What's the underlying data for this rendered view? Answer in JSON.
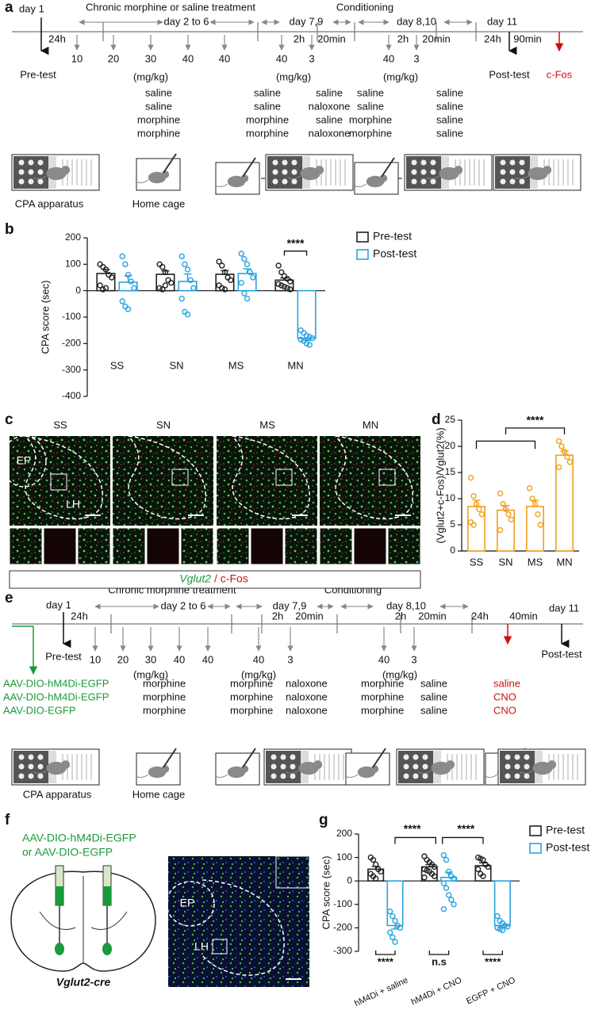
{
  "panel_a": {
    "label": "a",
    "treatment": "Chronic morphine or saline treatment",
    "conditioning": "Conditioning",
    "days": [
      "day 1",
      "day 2 to 6",
      "day 7,9",
      "day 8,10",
      "day 11"
    ],
    "intervals": [
      "24h",
      "2h",
      "20min",
      "2h",
      "20min",
      "24h",
      "90min"
    ],
    "doses": [
      10,
      20,
      30,
      40,
      40,
      40,
      3,
      40,
      3
    ],
    "unit": "(mg/kg)",
    "tests": [
      "Pre-test",
      "Post-test"
    ],
    "marker": "c-Fos",
    "groups": [
      [
        "saline",
        "saline",
        "morphine",
        "morphine"
      ],
      [
        "saline",
        "saline",
        "morphine",
        "morphine"
      ],
      [
        "saline",
        "naloxone",
        "saline",
        "naloxone"
      ],
      [
        "saline",
        "saline",
        "morphine",
        "morphine"
      ],
      [
        "saline",
        "saline",
        "saline",
        "saline"
      ]
    ],
    "apparatus": [
      "CPA apparatus",
      "Home cage"
    ]
  },
  "panel_c": {
    "label": "c",
    "groups": [
      "SS",
      "SN",
      "MS",
      "MN"
    ],
    "regions": [
      "EP",
      "LH"
    ],
    "legend": [
      "Vglut2",
      "/ c-Fos"
    ]
  },
  "panel_e": {
    "label": "e",
    "treatment": "Chronic morphine treatment",
    "conditioning": "Conditioning",
    "days": [
      "day 1",
      "day 2 to 6",
      "day 7,9",
      "day 8,10",
      "day 11"
    ],
    "intervals": [
      "24h",
      "2h",
      "20min",
      "2h",
      "20min",
      "24h",
      "40min"
    ],
    "doses": [
      10,
      20,
      30,
      40,
      40,
      40,
      3,
      40,
      3
    ],
    "unit": "(mg/kg)",
    "tests": [
      "Pre-test",
      "Post-test"
    ],
    "viruses": [
      "AAV-DIO-hM4Di-EGFP",
      "AAV-DIO-hM4Di-EGFP",
      "AAV-DIO-EGFP"
    ],
    "groups": [
      [
        "morphine",
        "morphine",
        "morphine"
      ],
      [
        "morphine",
        "morphine",
        "morphine"
      ],
      [
        "naloxone",
        "naloxone",
        "naloxone"
      ],
      [
        "morphine",
        "morphine",
        "morphine"
      ],
      [
        "saline",
        "saline",
        "saline"
      ]
    ],
    "drugs": [
      "saline",
      "CNO",
      "CNO"
    ],
    "apparatus": [
      "CPA apparatus",
      "Home cage"
    ]
  },
  "panel_f": {
    "label": "f",
    "viruses": [
      "AAV-DIO-hM4Di-EGFP",
      "or AAV-DIO-EGFP"
    ],
    "mouse": "Vglut2-cre",
    "regions": [
      "EP",
      "LH"
    ]
  },
  "chart_data": [
    {
      "type": "bar",
      "panel_label": "b",
      "ylabel": "CPA score (sec)",
      "categories": [
        "SS",
        "SN",
        "MS",
        "MN"
      ],
      "series": [
        {
          "name": "Pre-test",
          "color": "#222222",
          "values": [
            65,
            62,
            62,
            40
          ],
          "errors": [
            15,
            13,
            14,
            8
          ],
          "points": [
            [
              100,
              90,
              80,
              60,
              50,
              20,
              5,
              10
            ],
            [
              100,
              90,
              70,
              40,
              30,
              10,
              5,
              20
            ],
            [
              110,
              95,
              70,
              50,
              40,
              20,
              10,
              5
            ],
            [
              95,
              70,
              55,
              45,
              35,
              25,
              20,
              15,
              10,
              5
            ]
          ]
        },
        {
          "name": "Post-test",
          "color": "#29a3e0",
          "values": [
            32,
            35,
            65,
            -180
          ],
          "errors": [
            25,
            28,
            18,
            8
          ],
          "points": [
            [
              130,
              100,
              60,
              35,
              10,
              -40,
              -60,
              -70
            ],
            [
              130,
              100,
              80,
              40,
              10,
              -30,
              -80,
              -90
            ],
            [
              140,
              120,
              100,
              70,
              50,
              30,
              -10,
              -30
            ],
            [
              -150,
              -160,
              -170,
              -175,
              -180,
              -185,
              -190,
              -200,
              -205
            ]
          ]
        }
      ],
      "ylim": [
        -400,
        200
      ],
      "yticks": [
        -400,
        -300,
        -200,
        -100,
        0,
        100,
        200
      ],
      "legend": "right",
      "significance": [
        "****"
      ]
    },
    {
      "type": "bar",
      "panel_label": "d",
      "ylabel": "(Vglut2+c-Fos)/Vglut2(%)",
      "categories": [
        "SS",
        "SN",
        "MS",
        "MN"
      ],
      "values": [
        8.5,
        7.8,
        8.5,
        18.3
      ],
      "errors": [
        1.2,
        0.9,
        1.2,
        0.8
      ],
      "color": "#f0a020",
      "points": [
        [
          14,
          10.5,
          9,
          8,
          7,
          5.5,
          5
        ],
        [
          11,
          9,
          8,
          7,
          6,
          4
        ],
        [
          12,
          10,
          9,
          7,
          5
        ],
        [
          21,
          20,
          19,
          18,
          17,
          16
        ]
      ],
      "ylim": [
        0,
        25
      ],
      "yticks": [
        0,
        5,
        10,
        15,
        20,
        25
      ],
      "significance": [
        "****"
      ]
    },
    {
      "type": "bar",
      "panel_label": "g",
      "ylabel": "CPA score (sec)",
      "categories": [
        "hM4Di + saline",
        "hM4Di + CNO",
        "EGFP + CNO"
      ],
      "series": [
        {
          "name": "Pre-test",
          "color": "#222222",
          "values": [
            50,
            60,
            65
          ],
          "errors": [
            12,
            10,
            12
          ],
          "points": [
            [
              100,
              90,
              70,
              50,
              40,
              30,
              20,
              10
            ],
            [
              105,
              90,
              80,
              70,
              60,
              50,
              45,
              40,
              30,
              20,
              15
            ],
            [
              100,
              95,
              90,
              70,
              60,
              50,
              30,
              20
            ]
          ]
        },
        {
          "name": "Post-test",
          "color": "#29a3e0",
          "values": [
            -190,
            15,
            -190
          ],
          "errors": [
            15,
            22,
            8
          ],
          "points": [
            [
              -130,
              -150,
              -170,
              -190,
              -200,
              -220,
              -240,
              -260
            ],
            [
              110,
              90,
              40,
              20,
              10,
              -10,
              -30,
              -60,
              -80,
              -100,
              -120
            ],
            [
              -150,
              -170,
              -180,
              -190,
              -195,
              -200,
              -205,
              -210
            ]
          ]
        }
      ],
      "ylim": [
        -300,
        200
      ],
      "yticks": [
        -300,
        -200,
        -100,
        0,
        100,
        200
      ],
      "legend": "right",
      "significance": [
        "****",
        "****",
        "****",
        "n.s",
        "****"
      ]
    }
  ]
}
